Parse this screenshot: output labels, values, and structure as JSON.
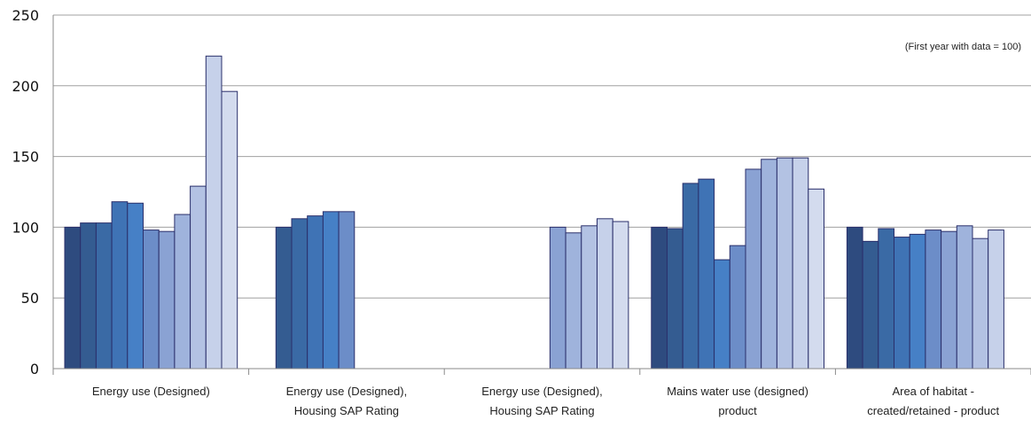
{
  "chart_data": {
    "type": "bar",
    "title": "",
    "xlabel": "",
    "ylabel": "",
    "ylim": [
      0,
      250
    ],
    "yticks": [
      "0",
      "50",
      "100",
      "150",
      "200",
      "250"
    ],
    "grid": true,
    "note": "(First year with data = 100)",
    "categories": [
      [
        "Energy use (Designed)"
      ],
      [
        "Energy use (Designed),",
        "Housing SAP Rating"
      ],
      [
        "Energy use (Designed),",
        "Housing SAP Rating"
      ],
      [
        "Mains water use (designed)",
        "product"
      ],
      [
        "Area of habitat -",
        "created/retained - product"
      ]
    ],
    "series_colors": [
      "#2e4b7f",
      "#345c91",
      "#3a6aa5",
      "#3f73b5",
      "#4680c6",
      "#6c8dc8",
      "#8aa2d3",
      "#9fb3dc",
      "#b3c2e3",
      "#c6d1ea",
      "#d3dbee"
    ],
    "series": [
      {
        "values": [
          100,
          null,
          null,
          100,
          100
        ]
      },
      {
        "values": [
          103,
          100,
          null,
          99,
          90
        ]
      },
      {
        "values": [
          103,
          106,
          null,
          131,
          99
        ]
      },
      {
        "values": [
          118,
          108,
          null,
          134,
          93
        ]
      },
      {
        "values": [
          117,
          111,
          null,
          77,
          95
        ]
      },
      {
        "values": [
          98,
          111,
          null,
          87,
          98
        ]
      },
      {
        "values": [
          97,
          null,
          100,
          141,
          97
        ]
      },
      {
        "values": [
          109,
          null,
          96,
          148,
          101
        ]
      },
      {
        "values": [
          129,
          null,
          101,
          149,
          92
        ]
      },
      {
        "values": [
          221,
          null,
          106,
          149,
          98
        ]
      },
      {
        "values": [
          196,
          null,
          104,
          127,
          null
        ]
      }
    ]
  }
}
